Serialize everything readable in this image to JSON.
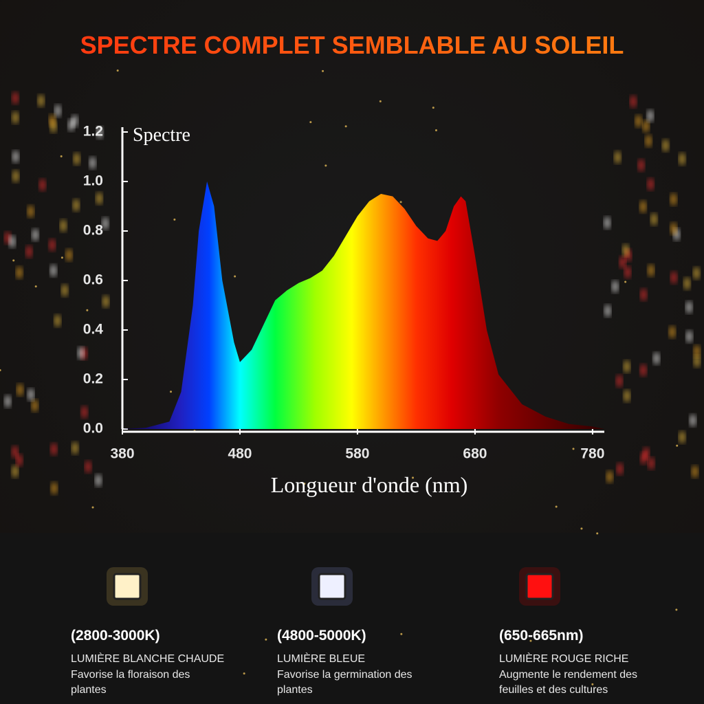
{
  "chart_data": {
    "type": "area",
    "title": "SPECTRE COMPLET SEMBLABLE AU SOLEIL",
    "ylabel": "Spectre",
    "xlabel": "Longueur d'onde (nm)",
    "x": [
      380,
      400,
      420,
      430,
      440,
      445,
      452,
      458,
      465,
      475,
      480,
      490,
      500,
      510,
      520,
      530,
      540,
      550,
      560,
      570,
      580,
      590,
      600,
      610,
      620,
      630,
      640,
      648,
      655,
      662,
      668,
      672,
      680,
      690,
      700,
      720,
      740,
      760,
      780,
      790
    ],
    "values": [
      0,
      0.005,
      0.03,
      0.15,
      0.5,
      0.8,
      1.0,
      0.9,
      0.6,
      0.35,
      0.27,
      0.32,
      0.42,
      0.52,
      0.56,
      0.59,
      0.61,
      0.64,
      0.7,
      0.78,
      0.86,
      0.92,
      0.95,
      0.94,
      0.89,
      0.82,
      0.77,
      0.76,
      0.8,
      0.9,
      0.94,
      0.92,
      0.7,
      0.4,
      0.22,
      0.1,
      0.05,
      0.02,
      0.01,
      0
    ],
    "xlim": [
      380,
      790
    ],
    "ylim": [
      0,
      1.2
    ],
    "xticks": [
      380,
      480,
      580,
      680,
      780
    ],
    "yticks": [
      {
        "value": 0,
        "label": "0.0"
      },
      0.2,
      0.4,
      0.6,
      0.8,
      {
        "value": 1,
        "label": "1.0"
      },
      1.2
    ]
  },
  "features": [
    {
      "heading": "(2800-3000K)",
      "label": "LUMIÈRE BLANCHE CHAUDE",
      "description": "Favorise la floraison des plantes"
    },
    {
      "heading": "(4800-5000K)",
      "label": "LUMIÈRE BLEUE",
      "description": "Favorise la germination des plantes"
    },
    {
      "heading": "(650-665nm)",
      "label": "LUMIÈRE ROUGE RICHE",
      "description": "Augmente le rendement des feuilles et des cultures"
    }
  ]
}
